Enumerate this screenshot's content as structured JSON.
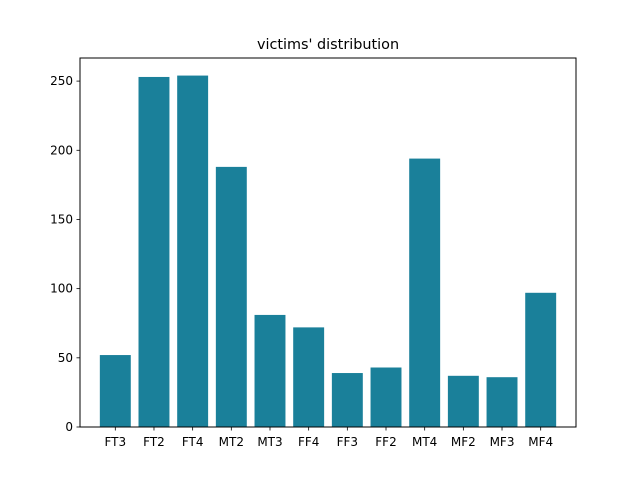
{
  "chart_data": {
    "type": "bar",
    "title": "victims' distribution",
    "xlabel": "",
    "ylabel": "",
    "categories": [
      "FT3",
      "FT2",
      "FT4",
      "MT2",
      "MT3",
      "FF4",
      "FF3",
      "FF2",
      "MT4",
      "MF2",
      "MF3",
      "MF4"
    ],
    "values": [
      52,
      253,
      254,
      188,
      81,
      72,
      39,
      43,
      194,
      37,
      36,
      97
    ],
    "ylim": [
      0,
      266.7
    ],
    "yticks": [
      0,
      50,
      100,
      150,
      200,
      250
    ],
    "grid": false,
    "legend": "none",
    "bar_color": "#1a809a"
  }
}
